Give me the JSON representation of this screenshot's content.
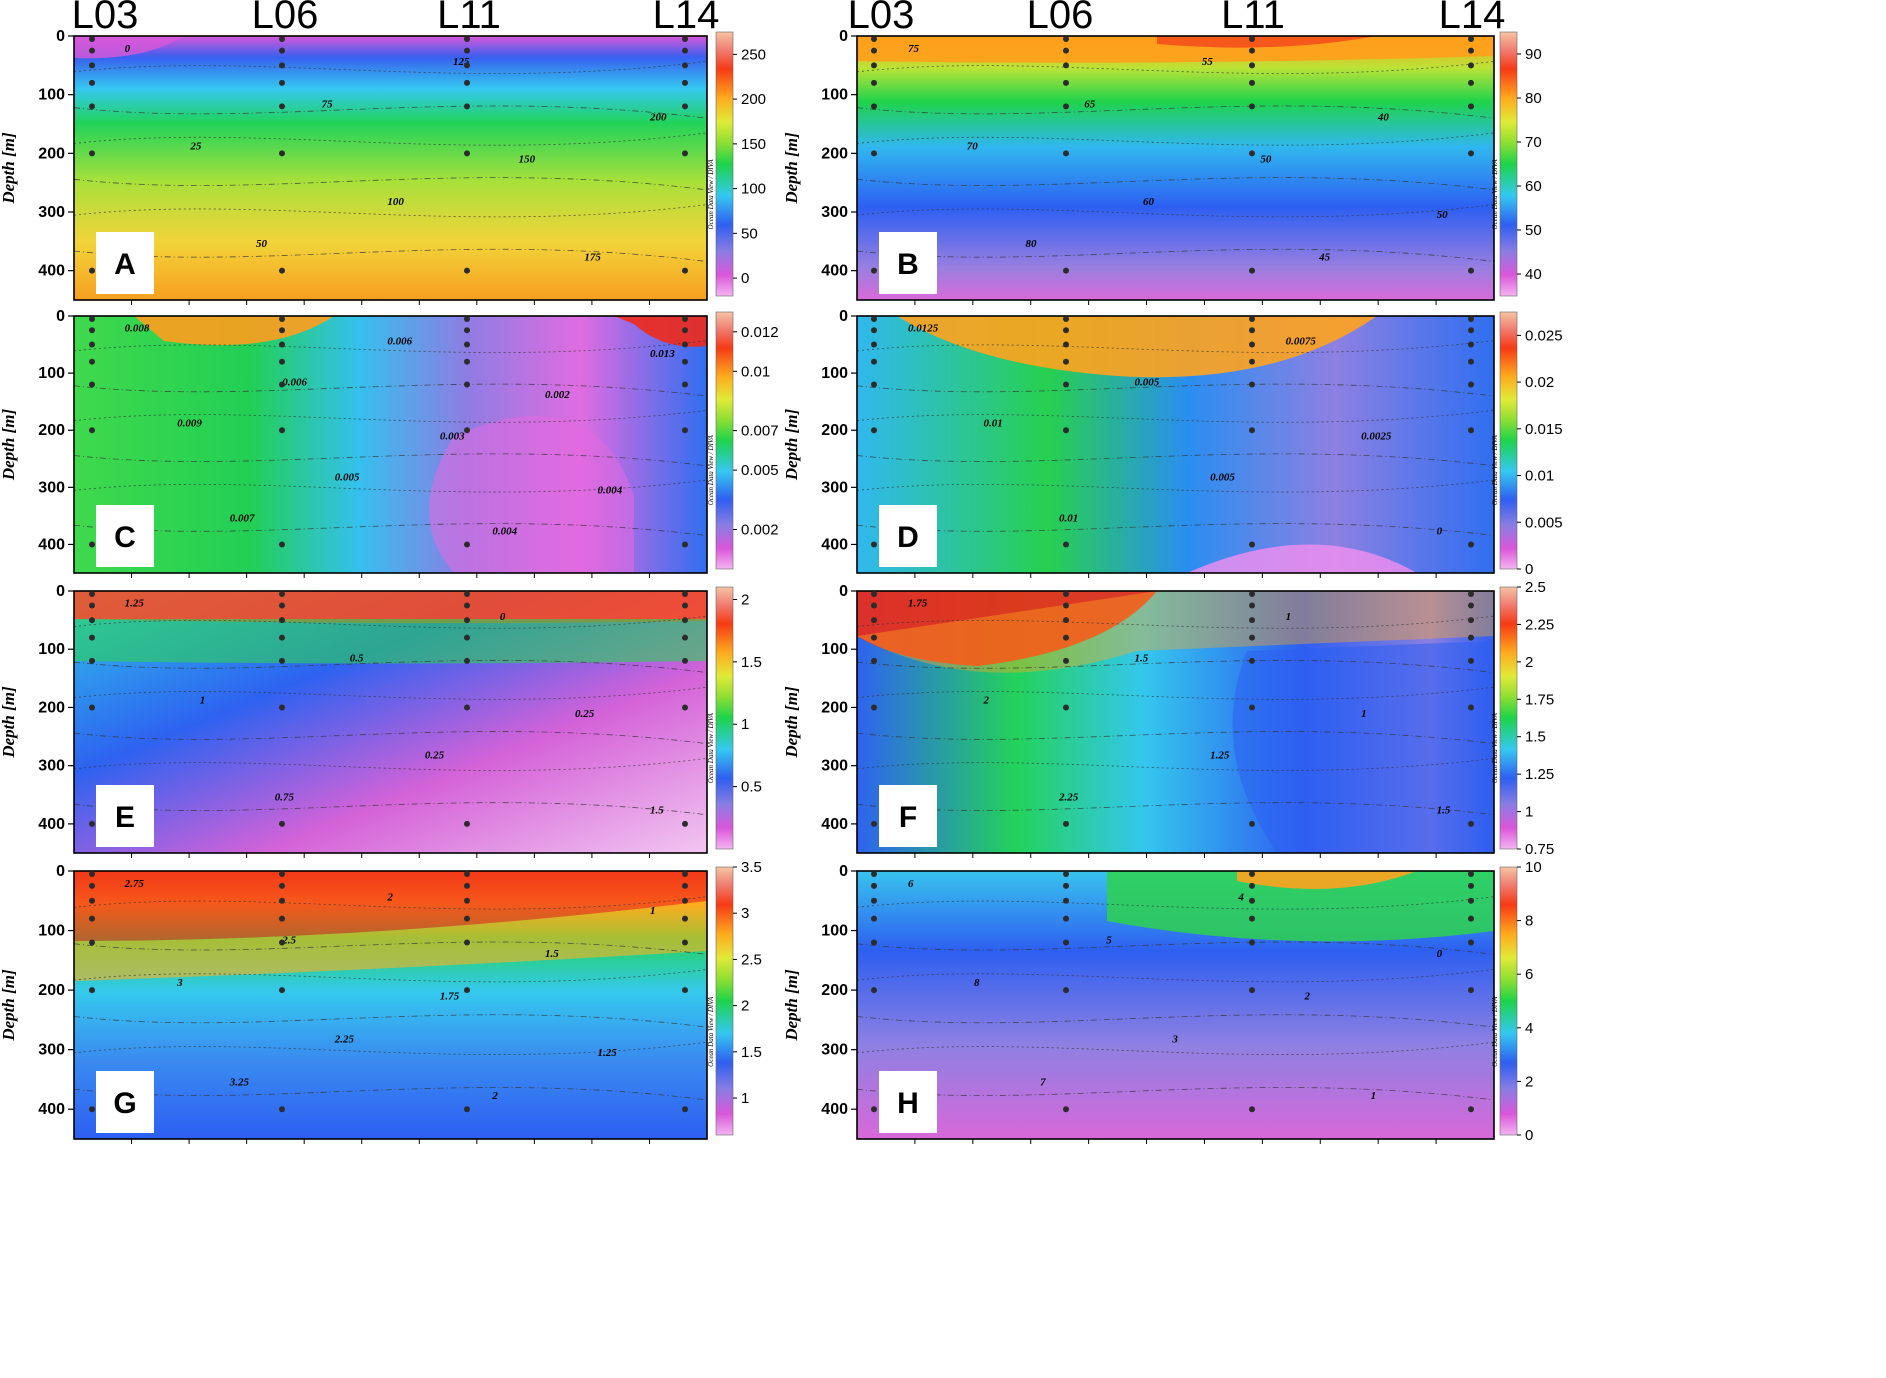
{
  "station_labels": [
    "L03",
    "L06",
    "L11",
    "L14"
  ],
  "y_axis_label": "Depth [m]",
  "colorbar_caption": "Ocean Data View / DIVA",
  "chart_data": [
    {
      "type": "heatmap",
      "panel": "A",
      "ylabel": "Depth [m]",
      "ylim": [
        450,
        0
      ],
      "yticks": [
        "0",
        "100",
        "200",
        "300",
        "400"
      ],
      "stations": [
        "L03",
        "L06",
        "L11",
        "L14"
      ],
      "colorbar": {
        "ticks": [
          "0",
          "50",
          "100",
          "150",
          "200",
          "250"
        ],
        "range": [
          -20,
          275
        ],
        "scheme": "odv"
      },
      "contour_labels": [
        "0",
        "25",
        "50",
        "75",
        "100",
        "125",
        "150",
        "175",
        "200"
      ]
    },
    {
      "type": "heatmap",
      "panel": "B",
      "ylabel": "Depth [m]",
      "ylim": [
        450,
        0
      ],
      "yticks": [
        "0",
        "100",
        "200",
        "300",
        "400"
      ],
      "stations": [
        "L03",
        "L06",
        "L11",
        "L14"
      ],
      "colorbar": {
        "ticks": [
          "40",
          "50",
          "60",
          "70",
          "80",
          "90"
        ],
        "range": [
          35,
          95
        ],
        "scheme": "odv"
      },
      "contour_labels": [
        "75",
        "70",
        "80",
        "65",
        "60",
        "55",
        "50",
        "45",
        "40",
        "50"
      ]
    },
    {
      "type": "heatmap",
      "panel": "C",
      "ylabel": "Depth [m]",
      "ylim": [
        450,
        0
      ],
      "yticks": [
        "0",
        "100",
        "200",
        "300",
        "400"
      ],
      "stations": [
        "L03",
        "L06",
        "L11",
        "L14"
      ],
      "colorbar": {
        "ticks": [
          "0.002",
          "0.005",
          "0.007",
          "0.01",
          "0.012"
        ],
        "range": [
          0,
          0.013
        ],
        "scheme": "odv"
      },
      "contour_labels": [
        "0.008",
        "0.009",
        "0.007",
        "0.006",
        "0.005",
        "0.006",
        "0.003",
        "0.004",
        "0.002",
        "0.004",
        "0.013"
      ]
    },
    {
      "type": "heatmap",
      "panel": "D",
      "ylabel": "Depth [m]",
      "ylim": [
        450,
        0
      ],
      "yticks": [
        "0",
        "100",
        "200",
        "300",
        "400"
      ],
      "stations": [
        "L03",
        "L06",
        "L11",
        "L14"
      ],
      "colorbar": {
        "ticks": [
          "0",
          "0.005",
          "0.01",
          "0.015",
          "0.02",
          "0.025"
        ],
        "range": [
          0,
          0.0275
        ],
        "scheme": "odv"
      },
      "contour_labels": [
        "0.0125",
        "0.01",
        "0.01",
        "0.005",
        "0.005",
        "0.0075",
        "0.0025",
        "0"
      ]
    },
    {
      "type": "heatmap",
      "panel": "E",
      "ylabel": "Depth [m]",
      "ylim": [
        450,
        0
      ],
      "yticks": [
        "0",
        "100",
        "200",
        "300",
        "400"
      ],
      "stations": [
        "L03",
        "L06",
        "L11",
        "L14"
      ],
      "colorbar": {
        "ticks": [
          "0.5",
          "1",
          "1.5",
          "2"
        ],
        "range": [
          0,
          2.1
        ],
        "scheme": "odv"
      },
      "contour_labels": [
        "1.25",
        "1",
        "0.75",
        "0.5",
        "0.25",
        "0",
        "0.25",
        "1.5"
      ]
    },
    {
      "type": "heatmap",
      "panel": "F",
      "ylabel": "Depth [m]",
      "ylim": [
        450,
        0
      ],
      "yticks": [
        "0",
        "100",
        "200",
        "300",
        "400"
      ],
      "stations": [
        "L03",
        "L06",
        "L11",
        "L14"
      ],
      "colorbar": {
        "ticks": [
          "0.75",
          "1",
          "1.25",
          "1.5",
          "1.75",
          "2",
          "2.25",
          "2.5"
        ],
        "range": [
          0.75,
          2.5
        ],
        "scheme": "odv"
      },
      "contour_labels": [
        "1.75",
        "2",
        "2.25",
        "1.5",
        "1.25",
        "1",
        "1",
        "1.5"
      ]
    },
    {
      "type": "heatmap",
      "panel": "G",
      "ylabel": "Depth [m]",
      "ylim": [
        450,
        0
      ],
      "yticks": [
        "0",
        "100",
        "200",
        "300",
        "400"
      ],
      "stations": [
        "L03",
        "L06",
        "L11",
        "L14"
      ],
      "colorbar": {
        "ticks": [
          "1",
          "1.5",
          "2",
          "2.5",
          "3",
          "3.5"
        ],
        "range": [
          0.6,
          3.5
        ],
        "scheme": "odv"
      },
      "contour_labels": [
        "2.75",
        "3",
        "3.25",
        "2.5",
        "2.25",
        "2",
        "1.75",
        "2",
        "1.5",
        "1.25",
        "1"
      ]
    },
    {
      "type": "heatmap",
      "panel": "H",
      "ylabel": "Depth [m]",
      "ylim": [
        450,
        0
      ],
      "yticks": [
        "0",
        "100",
        "200",
        "300",
        "400"
      ],
      "stations": [
        "L03",
        "L06",
        "L11",
        "L14"
      ],
      "colorbar": {
        "ticks": [
          "0",
          "2",
          "4",
          "6",
          "8",
          "10"
        ],
        "range": [
          0,
          10
        ],
        "scheme": "odv"
      },
      "contour_labels": [
        "6",
        "8",
        "7",
        "5",
        "3",
        "4",
        "2",
        "1",
        "0"
      ]
    }
  ]
}
